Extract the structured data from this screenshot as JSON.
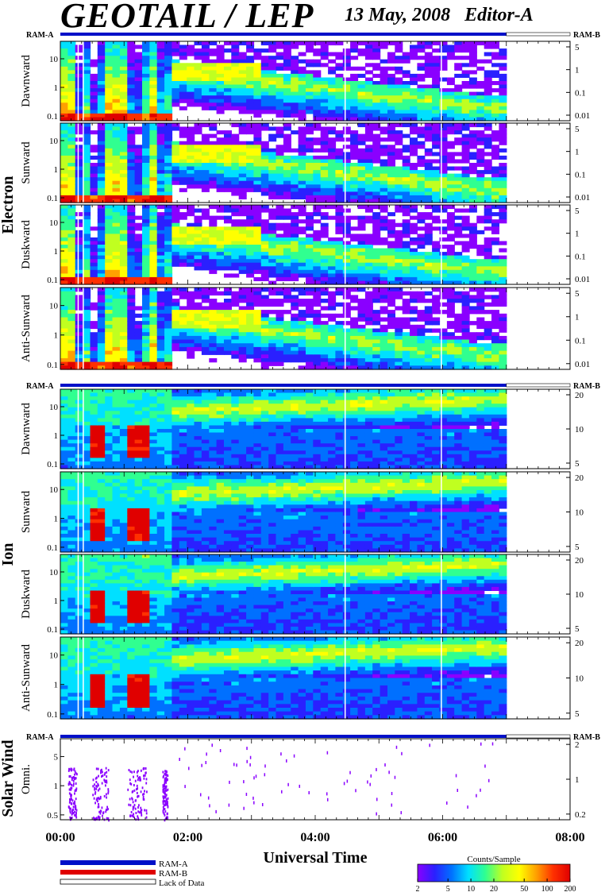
{
  "header": {
    "title": "GEOTAIL / LEP",
    "date": "13 May, 2008",
    "editor": "Editor-A"
  },
  "chart_data": {
    "type": "heatmap",
    "title": "GEOTAIL / LEP",
    "date": "13 May, 2008",
    "editor": "Editor-A",
    "xlabel": "Universal Time",
    "x_ticks": [
      "00:00",
      "02:00",
      "04:00",
      "06:00",
      "08:00"
    ],
    "x_range_hours": [
      0,
      8
    ],
    "data_end_hour": 7.0,
    "data_gaps_hours": [
      0.28,
      0.36,
      4.47,
      5.98
    ],
    "groups": [
      {
        "name": "Electron",
        "panels": [
          {
            "label": "Dawnward",
            "left_ticks": [
              "10",
              "1",
              "0.1"
            ],
            "right_ticks": [
              "5",
              "1",
              "0.1",
              "0.01"
            ]
          },
          {
            "label": "Sunward",
            "left_ticks": [
              "10",
              "1",
              "0.1"
            ],
            "right_ticks": [
              "5",
              "1",
              "0.1",
              "0.01"
            ]
          },
          {
            "label": "Duskward",
            "left_ticks": [
              "10",
              "1",
              "0.1"
            ],
            "right_ticks": [
              "5",
              "1",
              "0.1",
              "0.01"
            ]
          },
          {
            "label": "Anti-Sunward",
            "left_ticks": [
              "10",
              "1",
              "0.1"
            ],
            "right_ticks": [
              "5",
              "1",
              "0.1",
              "0.01"
            ]
          }
        ]
      },
      {
        "name": "Ion",
        "panels": [
          {
            "label": "Dawnward",
            "left_ticks": [
              "10",
              "1",
              "0.1"
            ],
            "right_ticks": [
              "20",
              "10",
              "5"
            ]
          },
          {
            "label": "Sunward",
            "left_ticks": [
              "10",
              "1",
              "0.1"
            ],
            "right_ticks": [
              "20",
              "10",
              "5"
            ]
          },
          {
            "label": "Duskward",
            "left_ticks": [
              "10",
              "1",
              "0.1"
            ],
            "right_ticks": [
              "20",
              "10",
              "5"
            ]
          },
          {
            "label": "Anti-Sunward",
            "left_ticks": [
              "10",
              "1",
              "0.1"
            ],
            "right_ticks": [
              "20",
              "10",
              "5"
            ]
          }
        ]
      },
      {
        "name": "Solar Wind",
        "panels": [
          {
            "label": "Omni.",
            "left_ticks": [
              "5",
              "1",
              "0.5"
            ],
            "right_ticks": [
              "2",
              "1",
              "0.2"
            ]
          }
        ]
      }
    ],
    "ram_labels": {
      "left": "RAM-A",
      "right": "RAM-B"
    },
    "legend": {
      "ram_a": {
        "label": "RAM-A",
        "color": "#0010c8"
      },
      "ram_b": {
        "label": "RAM-B",
        "color": "#e00000"
      },
      "no_data": {
        "label": "Lack of Data",
        "color": "#ffffff"
      }
    },
    "colorbar": {
      "title": "Counts/Sample",
      "ticks": [
        "2",
        "5",
        "10",
        "20",
        "50",
        "100",
        "200"
      ],
      "colors": [
        "#8a00ff",
        "#2a20ff",
        "#0070ff",
        "#00e0ff",
        "#30ff90",
        "#c0ff20",
        "#ffff00",
        "#ffa000",
        "#ff3000",
        "#e00000"
      ]
    }
  }
}
